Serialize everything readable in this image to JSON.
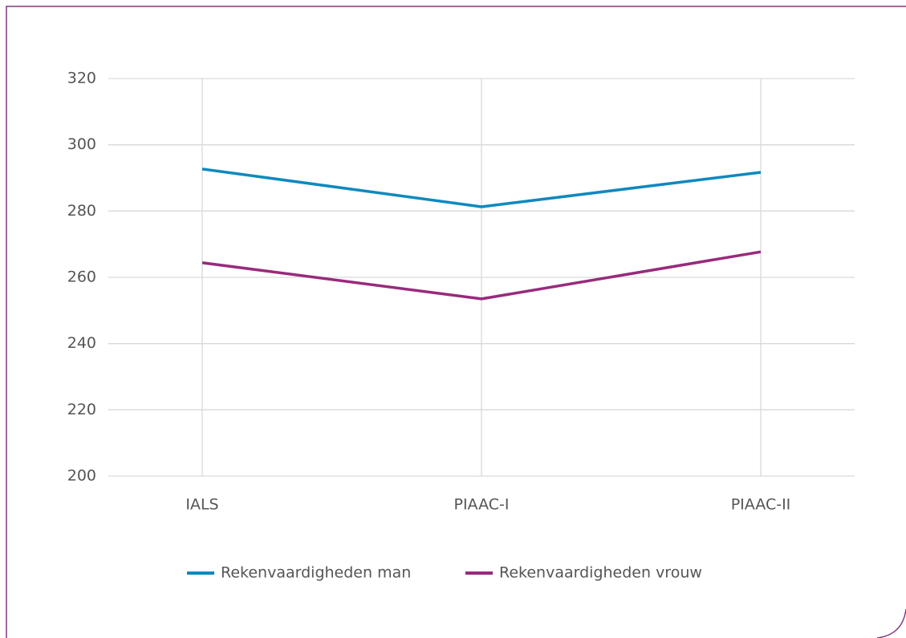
{
  "chart_data": {
    "type": "line",
    "categories": [
      "IALS",
      "PIAAC-I",
      "PIAAC-II"
    ],
    "series": [
      {
        "name": "Rekenvaardigheden man",
        "color": "#0e89bf",
        "values": [
          292.7,
          281.3,
          291.7
        ]
      },
      {
        "name": "Rekenvaardigheden vrouw",
        "color": "#992a7c",
        "values": [
          264.4,
          253.5,
          267.7
        ]
      }
    ],
    "ylim": [
      200,
      320
    ],
    "yticks": [
      200,
      220,
      240,
      260,
      280,
      300,
      320
    ],
    "grid": true,
    "legend": "bottom"
  }
}
